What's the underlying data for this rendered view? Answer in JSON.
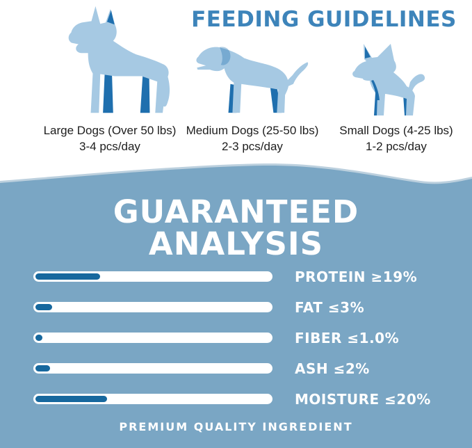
{
  "feeding": {
    "title": "FEEDING GUIDELINES",
    "groups": [
      {
        "dog": "large-dog-silhouette",
        "label": "Large Dogs (Over 50 lbs)",
        "amount": "3-4 pcs/day"
      },
      {
        "dog": "medium-dog-silhouette",
        "label": "Medium Dogs (25-50 lbs)",
        "amount": "2-3 pcs/day"
      },
      {
        "dog": "small-dog-silhouette",
        "label": "Small Dogs (4-25 lbs)",
        "amount": "1-2 pcs/day"
      }
    ]
  },
  "analysis": {
    "title_line1": "GUARANTEED",
    "title_line2": "ANALYSIS",
    "rows": [
      {
        "label": "PROTEIN",
        "value": "≥19%",
        "percent": 27
      },
      {
        "label": "FAT",
        "value": "≤3%",
        "percent": 7
      },
      {
        "label": "FIBER",
        "value": "≤1.0%",
        "percent": 3
      },
      {
        "label": "ASH",
        "value": "≤2%",
        "percent": 6
      },
      {
        "label": "MOISTURE",
        "value": "≤20%",
        "percent": 30
      }
    ],
    "footer": "PREMIUM QUALITY INGREDIENT"
  },
  "colors": {
    "title_blue": "#3D84BA",
    "section_blue": "#7AA6C4",
    "bar_track": "#FFFFFF",
    "bar_fill": "#17689E",
    "dog_light": "#A6C9E3",
    "dog_dark": "#1F6FAE",
    "text_dark": "#1D1D1D",
    "text_white": "#FFFFFF"
  },
  "chart_data": {
    "type": "bar",
    "title": "GUARANTEED ANALYSIS",
    "categories": [
      "PROTEIN",
      "FAT",
      "FIBER",
      "ASH",
      "MOISTURE"
    ],
    "values": [
      19,
      3,
      1.0,
      2,
      20
    ],
    "comparators": [
      "≥",
      "≤",
      "≤",
      "≤",
      "≤"
    ],
    "value_labels": [
      "≥19%",
      "≤3%",
      "≤1.0%",
      "≤2%",
      "≤20%"
    ],
    "bar_display_percent": [
      27,
      7,
      3,
      6,
      30
    ],
    "xlabel": "",
    "ylabel": "",
    "legend": false,
    "grid": false,
    "orientation": "horizontal"
  }
}
